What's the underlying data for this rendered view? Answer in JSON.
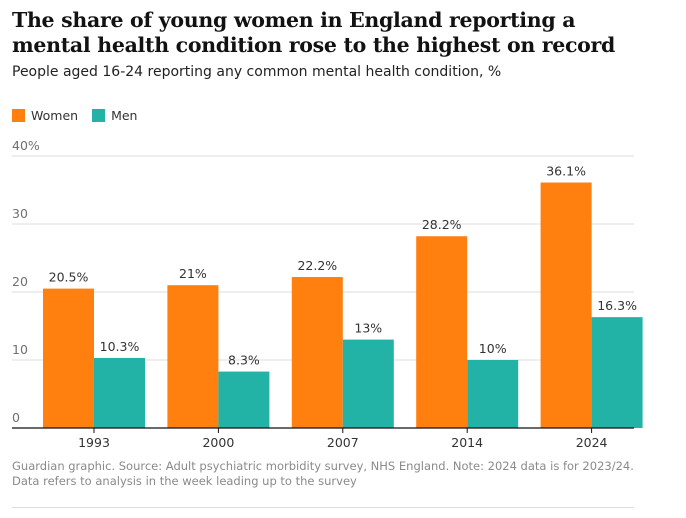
{
  "colors": {
    "women": "#ff7f0f",
    "men": "#22b3a6",
    "axis": "#121212",
    "grid": "#dcdcdc"
  },
  "chart_data": {
    "type": "bar",
    "title": "The share of young women in England reporting a mental health condition rose to the highest on record",
    "subtitle": "People aged 16-24 reporting any common mental health condition, %",
    "categories": [
      "1993",
      "2000",
      "2007",
      "2014",
      "2024"
    ],
    "series": [
      {
        "name": "Women",
        "values": [
          20.5,
          21,
          22.2,
          28.2,
          36.1
        ],
        "labels": [
          "20.5%",
          "21%",
          "22.2%",
          "28.2%",
          "36.1%"
        ]
      },
      {
        "name": "Men",
        "values": [
          10.3,
          8.3,
          13,
          10,
          16.3
        ],
        "labels": [
          "10.3%",
          "8.3%",
          "13%",
          "10%",
          "16.3%"
        ]
      }
    ],
    "yticks": [
      "0",
      "10",
      "20",
      "30",
      "40%"
    ],
    "ylim": [
      0,
      40
    ],
    "grid": true,
    "legend": "top-left",
    "source": "Guardian graphic. Source: Adult psychiatric morbidity survey, NHS England. Note: 2024 data is for 2023/24. Data refers to analysis in the week leading up to the survey"
  }
}
